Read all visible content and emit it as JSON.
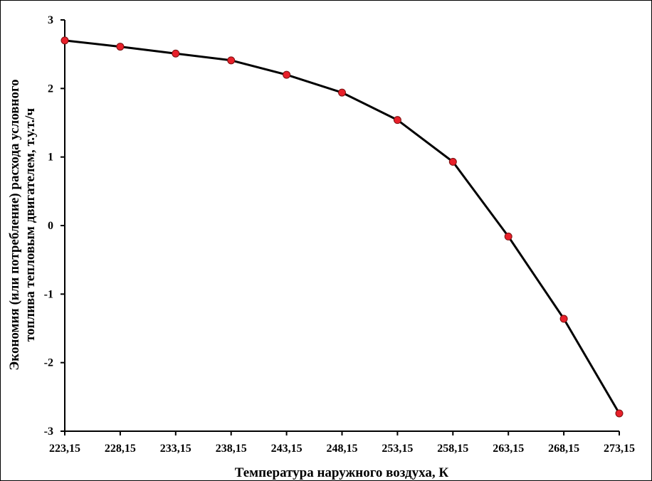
{
  "chart_data": {
    "type": "line",
    "title": "",
    "xlabel": "Температура наружного воздуха, К",
    "ylabel_lines": [
      "Экономия (или потребление) расхода условного",
      "топлива тепловым двигателем, т.у.т./ч"
    ],
    "x_tick_labels": [
      "223,15",
      "228,15",
      "233,15",
      "238,15",
      "243,15",
      "248,15",
      "253,15",
      "258,15",
      "263,15",
      "268,15",
      "273,15"
    ],
    "y_tick_labels": [
      "3",
      "2",
      "1",
      "0",
      "-1",
      "-2",
      "-3"
    ],
    "x": [
      223.15,
      228.15,
      233.15,
      238.15,
      243.15,
      248.15,
      253.15,
      258.15,
      263.15,
      268.15,
      273.15
    ],
    "series": [
      {
        "values": [
          2.7,
          2.61,
          2.51,
          2.41,
          2.2,
          1.94,
          1.54,
          0.93,
          -0.16,
          -1.36,
          -2.74
        ]
      }
    ],
    "xlim": [
      223.15,
      273.15
    ],
    "ylim": [
      -3,
      3
    ],
    "grid": false,
    "line_color": "#000000",
    "marker_color": "#e8202a"
  }
}
